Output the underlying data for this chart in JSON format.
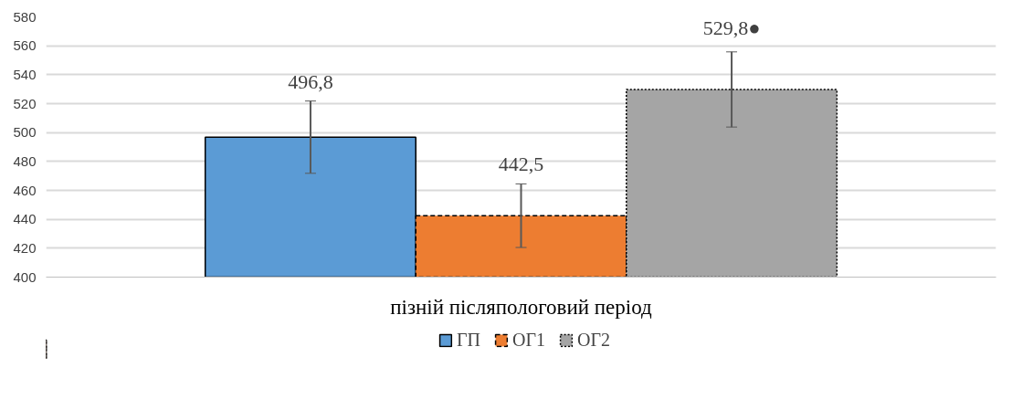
{
  "chart_data": {
    "type": "bar",
    "categories": [
      "пізній післяпологовий період"
    ],
    "series": [
      {
        "name": "ГП",
        "color": "#5b9bd5",
        "values": [
          496.8
        ],
        "errors": [
          25
        ],
        "value_labels": [
          "496,8"
        ],
        "line_style": "solid"
      },
      {
        "name": "ОГ1",
        "color": "#ed7d31",
        "values": [
          442.5
        ],
        "errors": [
          22
        ],
        "value_labels": [
          "442,5"
        ],
        "line_style": "dashed"
      },
      {
        "name": "ОГ2",
        "color": "#a5a5a5",
        "values": [
          529.8
        ],
        "errors": [
          26
        ],
        "value_labels": [
          "529,8●"
        ],
        "line_style": "dotted"
      }
    ],
    "ylim": [
      400,
      580
    ],
    "yticks": [
      400,
      420,
      440,
      460,
      480,
      500,
      520,
      540,
      560,
      580
    ],
    "grid": "y",
    "legend": "bottom"
  }
}
